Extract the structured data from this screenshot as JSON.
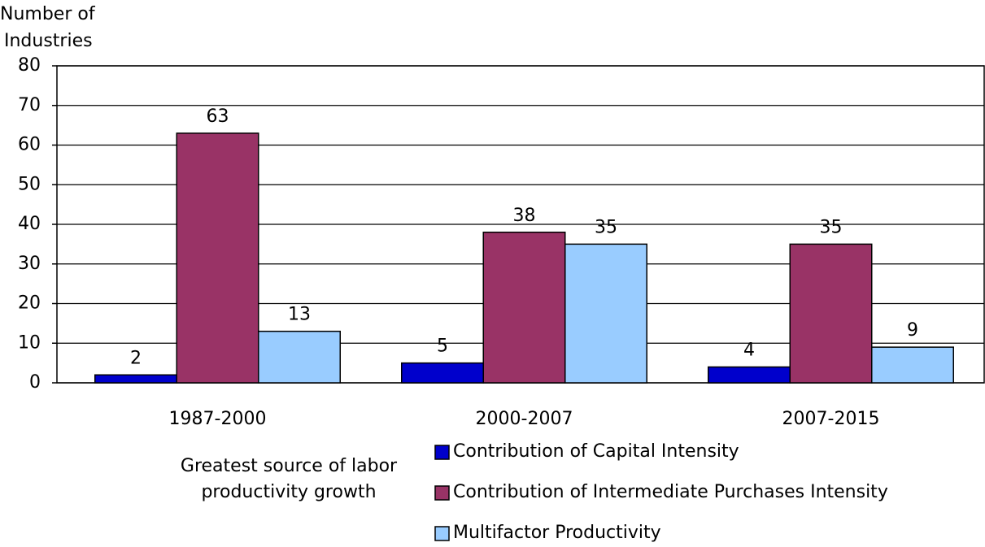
{
  "chart_data": {
    "type": "bar",
    "y_label": [
      "Number of",
      "Industries"
    ],
    "x_label": [
      "Greatest source of labor",
      "productivity growth"
    ],
    "categories": [
      "1987-2000",
      "2000-2007",
      "2007-2015"
    ],
    "series": [
      {
        "name": "Contribution of Capital Intensity",
        "color": "#0000cc",
        "values": [
          2,
          5,
          4
        ]
      },
      {
        "name": "Contribution of Intermediate Purchases Intensity",
        "color": "#993366",
        "values": [
          63,
          38,
          35
        ]
      },
      {
        "name": "Multifactor Productivity",
        "color": "#99ccff",
        "values": [
          13,
          35,
          9
        ]
      }
    ],
    "ylim": [
      0,
      80
    ],
    "yticks": [
      0,
      10,
      20,
      30,
      40,
      50,
      60,
      70,
      80
    ],
    "grid": true
  }
}
